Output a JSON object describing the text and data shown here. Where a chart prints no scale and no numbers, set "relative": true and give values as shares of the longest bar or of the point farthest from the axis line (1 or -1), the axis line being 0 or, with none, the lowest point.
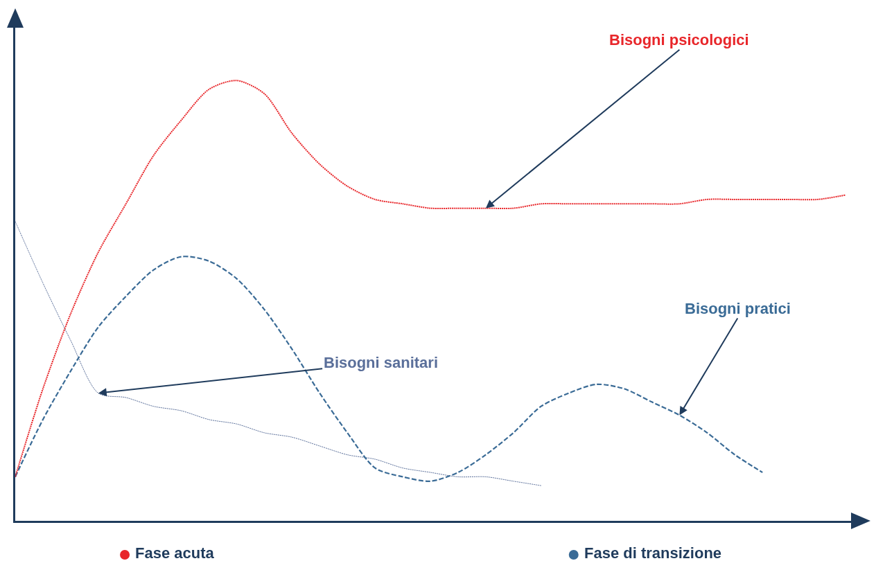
{
  "chart_data": {
    "type": "line",
    "relative": true,
    "categories": [
      null,
      null,
      null,
      null,
      null,
      null,
      null,
      null,
      null,
      null,
      null,
      null,
      null,
      null,
      null,
      null,
      null,
      null,
      null,
      null,
      null,
      null,
      null,
      null,
      null,
      null,
      null,
      null,
      null,
      null,
      null
    ],
    "series": [
      {
        "name": "Bisogni psicologici",
        "color": "#e8262a",
        "line_style": "dotted",
        "values": [
          0.1,
          0.3,
          0.47,
          0.61,
          0.72,
          0.83,
          0.91,
          0.98,
          1.0,
          0.97,
          0.88,
          0.81,
          0.76,
          0.73,
          0.72,
          0.71,
          0.71,
          0.71,
          0.71,
          0.72,
          0.72,
          0.72,
          0.72,
          0.72,
          0.72,
          0.73,
          0.73,
          0.73,
          0.73,
          0.73,
          0.74
        ]
      },
      {
        "name": "Bisogni pratici",
        "color": "#3a6b96",
        "line_style": "dashed",
        "values": [
          0.1,
          0.23,
          0.34,
          0.44,
          0.51,
          0.57,
          0.6,
          0.59,
          0.55,
          0.48,
          0.39,
          0.29,
          0.2,
          0.12,
          0.1,
          0.09,
          0.11,
          0.15,
          0.2,
          0.26,
          0.29,
          0.31,
          0.3,
          0.27,
          0.24,
          0.2,
          0.15,
          0.11,
          null,
          null,
          null
        ]
      },
      {
        "name": "Bisogni sanitari",
        "color": "#5a6f9a",
        "line_style": "dotted",
        "values": [
          0.68,
          0.54,
          0.41,
          0.29,
          0.28,
          0.26,
          0.25,
          0.23,
          0.22,
          0.2,
          0.19,
          0.17,
          0.15,
          0.14,
          0.12,
          0.11,
          0.1,
          0.1,
          0.09,
          0.08,
          null,
          null,
          null,
          null,
          null,
          null,
          null,
          null,
          null,
          null,
          null
        ]
      }
    ],
    "annotations": [
      "Fase acuta",
      "Fase di transizione"
    ],
    "legend": false,
    "marker": "none"
  }
}
